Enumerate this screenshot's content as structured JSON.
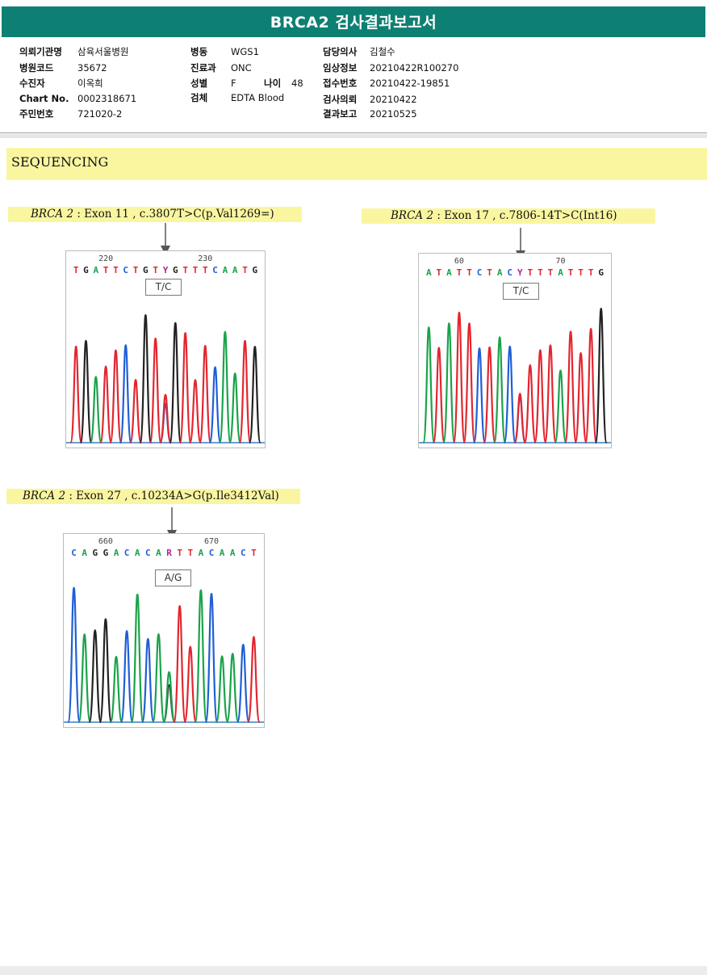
{
  "report": {
    "title": "BRCA2 검사결과보고서"
  },
  "header": {
    "col1": [
      {
        "label": "의뢰기관명",
        "value": "삼육서울병원"
      },
      {
        "label": "병원코드",
        "value": "35672"
      },
      {
        "label": "수진자",
        "value": "이옥희"
      },
      {
        "label": "Chart No.",
        "value": "0002318671"
      },
      {
        "label": "주민번호",
        "value": "721020-2"
      }
    ],
    "col2": [
      {
        "label": "병동",
        "value": "WGS1"
      },
      {
        "label": "진료과",
        "value": "ONC"
      },
      {
        "label": "성별",
        "value": "F"
      },
      {
        "label": "검체",
        "value": "EDTA Blood"
      }
    ],
    "age": {
      "label": "나이",
      "value": "48"
    },
    "col3": [
      {
        "label": "담당의사",
        "value": "김철수"
      },
      {
        "label": "임상정보",
        "value": "20210422R100270"
      },
      {
        "label": "접수번호",
        "value": "20210422-19851"
      },
      {
        "label": "검사의뢰",
        "value": "20210422"
      },
      {
        "label": "결과보고",
        "value": "20210525"
      }
    ]
  },
  "section": {
    "title": "SEQUENCING"
  },
  "panels": [
    {
      "gene": "BRCA 2",
      "desc": " : Exon 11 , c.3807T>C(p.Val1269=)",
      "pos_left": "220",
      "pos_right": "230",
      "sequence": "TGATTCTGTYGTTTCAATG",
      "call": "T/C"
    },
    {
      "gene": "BRCA 2",
      "desc": " : Exon 17 , c.7806-14T>C(Int16)",
      "pos_left": "60",
      "pos_right": "70",
      "sequence": "ATATTCTACYTTTATTTG",
      "call": "T/C"
    },
    {
      "gene": "BRCA 2",
      "desc": " : Exon 27 , c.10234A>G(p.Ile3412Val)",
      "pos_left": "660",
      "pos_right": "670",
      "sequence": "CAGGACACARTTACAACT",
      "call": "A/G"
    }
  ],
  "colors": {
    "A": "#1aa34a",
    "C": "#1f5fd6",
    "G": "#222222",
    "T": "#e3262f",
    "ambiguous": "#b2228f",
    "accent": "#0e7f73",
    "highlight": "#faf6a0"
  }
}
